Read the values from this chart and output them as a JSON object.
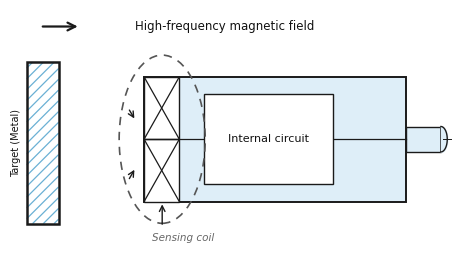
{
  "background": "#ffffff",
  "light_blue": "#deeef8",
  "line_color": "#1a1a1a",
  "dashed_color": "#555555",
  "text_color": "#111111",
  "gray_text": "#666666",
  "hatch_color": "#6ab0d4",
  "title": "High-frequency magnetic field",
  "label_target": "Target (Metal)",
  "label_sensing": "Sensing coil",
  "label_internal": "Internal circuit",
  "figsize": [
    4.74,
    2.76
  ],
  "dpi": 100,
  "xlim": [
    0,
    9.5
  ],
  "ylim": [
    0,
    5.2
  ]
}
